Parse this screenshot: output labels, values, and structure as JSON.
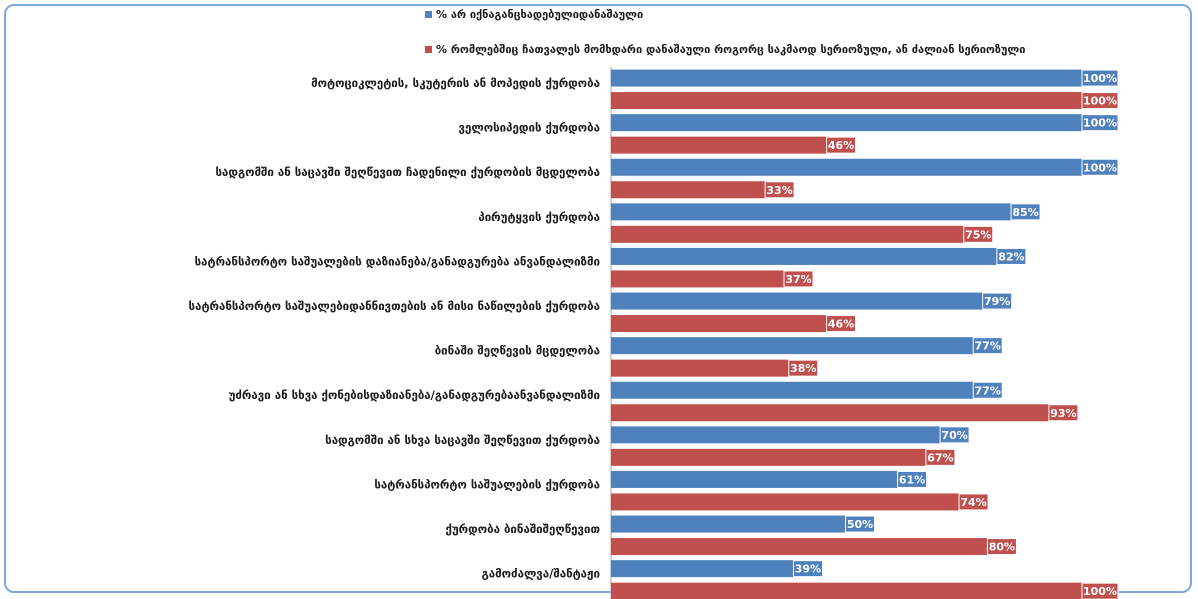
{
  "chart_data": {
    "type": "bar",
    "orientation": "horizontal",
    "xlim": [
      0,
      100
    ],
    "value_suffix": "%",
    "legend_position": "top",
    "categories": [
      "მოტოციკლეტის, სკუტერის ან მოპედის ქურდობა",
      "ველოსიპედის ქურდობა",
      "სადგომში ან საცავში შეღწევით ჩადენილი ქურდობის მცდელობა",
      "პირუტყვის ქურდობა",
      "სატრანსპორტო საშუალების დაზიანება/განადგურება ანვანდალიზმი",
      "სატრანსპორტო საშუალებიდანნივთების ან მისი ნაწილების ქურდობა",
      "ბინაში შეღწევის მცდელობა",
      "უძრავი ან სხვა ქონებისდაზიანება/განადგურებაანვანდალიზმი",
      "სადგომში ან სხვა საცავში შეღწევით ქურდობა",
      "სატრანსპორტო საშუალების ქურდობა",
      "ქურდობა ბინაშიშეღწევით",
      "გამოძალვა/შანტაჟი"
    ],
    "series": [
      {
        "name": "% არ იქნაგანცხადებულიდანაშაული",
        "color": "#4f81bd",
        "values": [
          100,
          100,
          100,
          85,
          82,
          79,
          77,
          77,
          70,
          61,
          50,
          39
        ]
      },
      {
        "name": "% რომლებშიც ჩათვალეს მომხდარი დანაშაული როგორც საკმაოდ სერიოზული, ან ძალიან სერიოზული",
        "color": "#c0504d",
        "values": [
          100,
          46,
          33,
          75,
          37,
          46,
          38,
          93,
          67,
          74,
          80,
          100
        ]
      }
    ]
  }
}
